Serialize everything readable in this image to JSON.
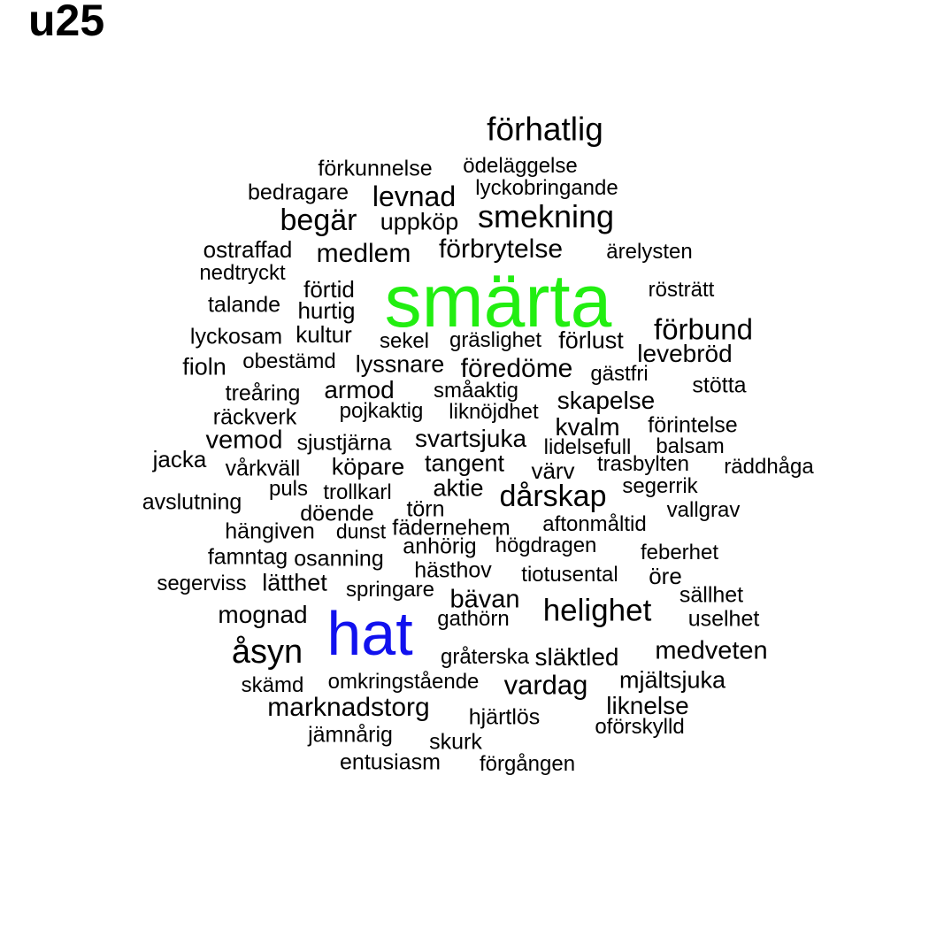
{
  "title": "u25",
  "accent_colors": {
    "default": "#000000",
    "green": "#22ee11",
    "blue": "#1111ee"
  },
  "words": [
    {
      "text": "förhatlig"
    },
    {
      "text": "förkunnelse"
    },
    {
      "text": "ödeläggelse"
    },
    {
      "text": "bedragare"
    },
    {
      "text": "levnad"
    },
    {
      "text": "lyckobringande"
    },
    {
      "text": "begär"
    },
    {
      "text": "uppköp"
    },
    {
      "text": "smekning"
    },
    {
      "text": "ostraffad"
    },
    {
      "text": "medlem"
    },
    {
      "text": "förbrytelse"
    },
    {
      "text": "ärelysten"
    },
    {
      "text": "nedtryckt"
    },
    {
      "text": "smärta",
      "color": "#22ee11"
    },
    {
      "text": "förtid"
    },
    {
      "text": "rösträtt"
    },
    {
      "text": "talande"
    },
    {
      "text": "hurtig"
    },
    {
      "text": "lyckosam"
    },
    {
      "text": "kultur"
    },
    {
      "text": "förbund"
    },
    {
      "text": "sekel"
    },
    {
      "text": "gräslighet"
    },
    {
      "text": "förlust"
    },
    {
      "text": "levebröd"
    },
    {
      "text": "fioln"
    },
    {
      "text": "obestämd"
    },
    {
      "text": "lyssnare"
    },
    {
      "text": "föredöme"
    },
    {
      "text": "gästfri"
    },
    {
      "text": "stötta"
    },
    {
      "text": "treåring"
    },
    {
      "text": "armod"
    },
    {
      "text": "småaktig"
    },
    {
      "text": "skapelse"
    },
    {
      "text": "räckverk"
    },
    {
      "text": "pojkaktig"
    },
    {
      "text": "liknöjdhet"
    },
    {
      "text": "kvalm"
    },
    {
      "text": "förintelse"
    },
    {
      "text": "vemod"
    },
    {
      "text": "sjustjärna"
    },
    {
      "text": "svartsjuka"
    },
    {
      "text": "lidelsefull"
    },
    {
      "text": "balsam"
    },
    {
      "text": "jacka"
    },
    {
      "text": "vårkväll"
    },
    {
      "text": "köpare"
    },
    {
      "text": "tangent"
    },
    {
      "text": "värv"
    },
    {
      "text": "trasbylten"
    },
    {
      "text": "räddhåga"
    },
    {
      "text": "puls"
    },
    {
      "text": "aktie"
    },
    {
      "text": "dårskap"
    },
    {
      "text": "segerrik"
    },
    {
      "text": "avslutning"
    },
    {
      "text": "trollkarl"
    },
    {
      "text": "törn"
    },
    {
      "text": "vallgrav"
    },
    {
      "text": "döende"
    },
    {
      "text": "fädernehem"
    },
    {
      "text": "aftonmåltid"
    },
    {
      "text": "hängiven"
    },
    {
      "text": "dunst"
    },
    {
      "text": "anhörig"
    },
    {
      "text": "högdragen"
    },
    {
      "text": "famntag"
    },
    {
      "text": "osanning"
    },
    {
      "text": "feberhet"
    },
    {
      "text": "hästhov"
    },
    {
      "text": "tiotusental"
    },
    {
      "text": "öre"
    },
    {
      "text": "segerviss"
    },
    {
      "text": "lätthet"
    },
    {
      "text": "springare"
    },
    {
      "text": "sällhet"
    },
    {
      "text": "bävan"
    },
    {
      "text": "helighet"
    },
    {
      "text": "mognad"
    },
    {
      "text": "gathörn"
    },
    {
      "text": "uselhet"
    },
    {
      "text": "hat",
      "color": "#1111ee"
    },
    {
      "text": "åsyn"
    },
    {
      "text": "medveten"
    },
    {
      "text": "gråterska"
    },
    {
      "text": "släktled"
    },
    {
      "text": "skämd"
    },
    {
      "text": "omkringstående"
    },
    {
      "text": "vardag"
    },
    {
      "text": "mjältsjuka"
    },
    {
      "text": "marknadstorg"
    },
    {
      "text": "liknelse"
    },
    {
      "text": "hjärtlös"
    },
    {
      "text": "oförskylld"
    },
    {
      "text": "jämnårig"
    },
    {
      "text": "skurk"
    },
    {
      "text": "entusiasm"
    },
    {
      "text": "förgången"
    }
  ]
}
